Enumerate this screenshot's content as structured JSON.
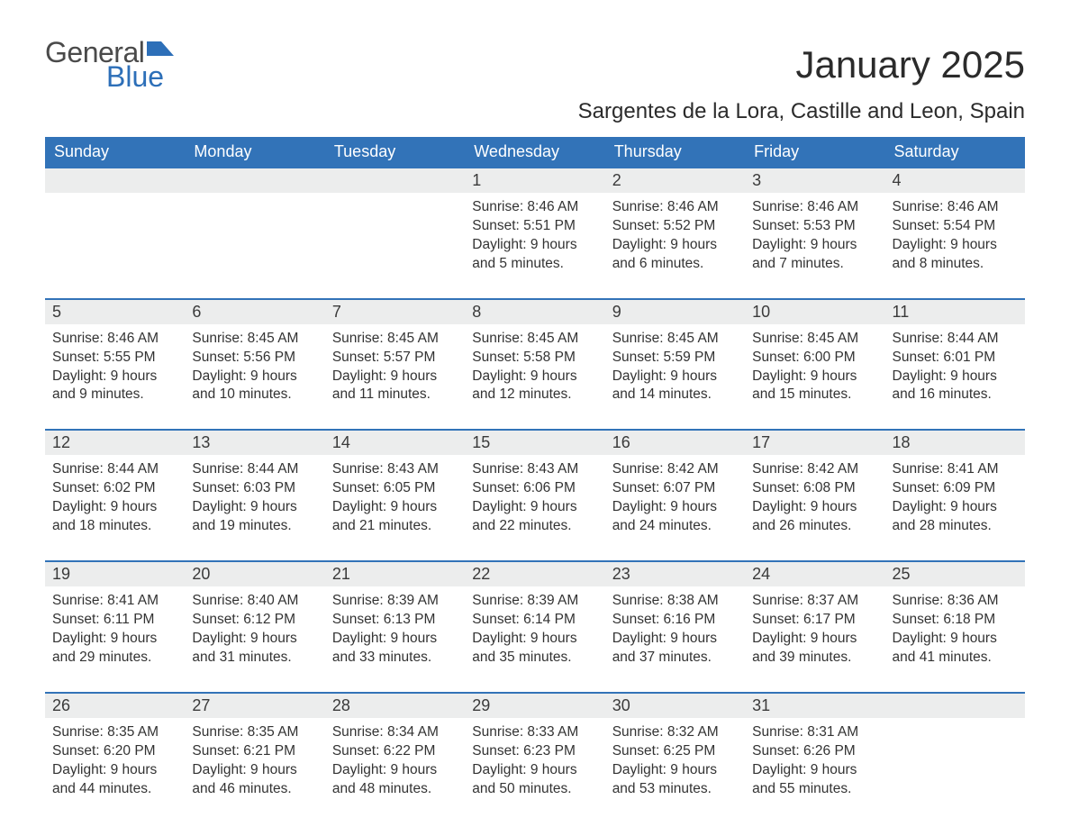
{
  "logo": {
    "word1": "General",
    "word2": "Blue"
  },
  "title": "January 2025",
  "subtitle": "Sargentes de la Lora, Castille and Leon, Spain",
  "colors": {
    "header_bg": "#3273b8",
    "header_text": "#ffffff",
    "daynum_bg": "#eceded",
    "rule": "#3273b8",
    "body_text": "#333333",
    "logo_gray": "#4a4a4a",
    "logo_blue": "#2d6fb8",
    "page_bg": "#ffffff"
  },
  "typography": {
    "title_fontsize": 42,
    "subtitle_fontsize": 24,
    "dayhead_fontsize": 18,
    "daynum_fontsize": 18,
    "detail_fontsize": 15.5,
    "logo_fontsize": 32,
    "font_family": "Arial"
  },
  "weekday_labels": [
    "Sunday",
    "Monday",
    "Tuesday",
    "Wednesday",
    "Thursday",
    "Friday",
    "Saturday"
  ],
  "weeks": [
    [
      null,
      null,
      null,
      {
        "n": "1",
        "sunrise": "Sunrise: 8:46 AM",
        "sunset": "Sunset: 5:51 PM",
        "d1": "Daylight: 9 hours",
        "d2": "and 5 minutes."
      },
      {
        "n": "2",
        "sunrise": "Sunrise: 8:46 AM",
        "sunset": "Sunset: 5:52 PM",
        "d1": "Daylight: 9 hours",
        "d2": "and 6 minutes."
      },
      {
        "n": "3",
        "sunrise": "Sunrise: 8:46 AM",
        "sunset": "Sunset: 5:53 PM",
        "d1": "Daylight: 9 hours",
        "d2": "and 7 minutes."
      },
      {
        "n": "4",
        "sunrise": "Sunrise: 8:46 AM",
        "sunset": "Sunset: 5:54 PM",
        "d1": "Daylight: 9 hours",
        "d2": "and 8 minutes."
      }
    ],
    [
      {
        "n": "5",
        "sunrise": "Sunrise: 8:46 AM",
        "sunset": "Sunset: 5:55 PM",
        "d1": "Daylight: 9 hours",
        "d2": "and 9 minutes."
      },
      {
        "n": "6",
        "sunrise": "Sunrise: 8:45 AM",
        "sunset": "Sunset: 5:56 PM",
        "d1": "Daylight: 9 hours",
        "d2": "and 10 minutes."
      },
      {
        "n": "7",
        "sunrise": "Sunrise: 8:45 AM",
        "sunset": "Sunset: 5:57 PM",
        "d1": "Daylight: 9 hours",
        "d2": "and 11 minutes."
      },
      {
        "n": "8",
        "sunrise": "Sunrise: 8:45 AM",
        "sunset": "Sunset: 5:58 PM",
        "d1": "Daylight: 9 hours",
        "d2": "and 12 minutes."
      },
      {
        "n": "9",
        "sunrise": "Sunrise: 8:45 AM",
        "sunset": "Sunset: 5:59 PM",
        "d1": "Daylight: 9 hours",
        "d2": "and 14 minutes."
      },
      {
        "n": "10",
        "sunrise": "Sunrise: 8:45 AM",
        "sunset": "Sunset: 6:00 PM",
        "d1": "Daylight: 9 hours",
        "d2": "and 15 minutes."
      },
      {
        "n": "11",
        "sunrise": "Sunrise: 8:44 AM",
        "sunset": "Sunset: 6:01 PM",
        "d1": "Daylight: 9 hours",
        "d2": "and 16 minutes."
      }
    ],
    [
      {
        "n": "12",
        "sunrise": "Sunrise: 8:44 AM",
        "sunset": "Sunset: 6:02 PM",
        "d1": "Daylight: 9 hours",
        "d2": "and 18 minutes."
      },
      {
        "n": "13",
        "sunrise": "Sunrise: 8:44 AM",
        "sunset": "Sunset: 6:03 PM",
        "d1": "Daylight: 9 hours",
        "d2": "and 19 minutes."
      },
      {
        "n": "14",
        "sunrise": "Sunrise: 8:43 AM",
        "sunset": "Sunset: 6:05 PM",
        "d1": "Daylight: 9 hours",
        "d2": "and 21 minutes."
      },
      {
        "n": "15",
        "sunrise": "Sunrise: 8:43 AM",
        "sunset": "Sunset: 6:06 PM",
        "d1": "Daylight: 9 hours",
        "d2": "and 22 minutes."
      },
      {
        "n": "16",
        "sunrise": "Sunrise: 8:42 AM",
        "sunset": "Sunset: 6:07 PM",
        "d1": "Daylight: 9 hours",
        "d2": "and 24 minutes."
      },
      {
        "n": "17",
        "sunrise": "Sunrise: 8:42 AM",
        "sunset": "Sunset: 6:08 PM",
        "d1": "Daylight: 9 hours",
        "d2": "and 26 minutes."
      },
      {
        "n": "18",
        "sunrise": "Sunrise: 8:41 AM",
        "sunset": "Sunset: 6:09 PM",
        "d1": "Daylight: 9 hours",
        "d2": "and 28 minutes."
      }
    ],
    [
      {
        "n": "19",
        "sunrise": "Sunrise: 8:41 AM",
        "sunset": "Sunset: 6:11 PM",
        "d1": "Daylight: 9 hours",
        "d2": "and 29 minutes."
      },
      {
        "n": "20",
        "sunrise": "Sunrise: 8:40 AM",
        "sunset": "Sunset: 6:12 PM",
        "d1": "Daylight: 9 hours",
        "d2": "and 31 minutes."
      },
      {
        "n": "21",
        "sunrise": "Sunrise: 8:39 AM",
        "sunset": "Sunset: 6:13 PM",
        "d1": "Daylight: 9 hours",
        "d2": "and 33 minutes."
      },
      {
        "n": "22",
        "sunrise": "Sunrise: 8:39 AM",
        "sunset": "Sunset: 6:14 PM",
        "d1": "Daylight: 9 hours",
        "d2": "and 35 minutes."
      },
      {
        "n": "23",
        "sunrise": "Sunrise: 8:38 AM",
        "sunset": "Sunset: 6:16 PM",
        "d1": "Daylight: 9 hours",
        "d2": "and 37 minutes."
      },
      {
        "n": "24",
        "sunrise": "Sunrise: 8:37 AM",
        "sunset": "Sunset: 6:17 PM",
        "d1": "Daylight: 9 hours",
        "d2": "and 39 minutes."
      },
      {
        "n": "25",
        "sunrise": "Sunrise: 8:36 AM",
        "sunset": "Sunset: 6:18 PM",
        "d1": "Daylight: 9 hours",
        "d2": "and 41 minutes."
      }
    ],
    [
      {
        "n": "26",
        "sunrise": "Sunrise: 8:35 AM",
        "sunset": "Sunset: 6:20 PM",
        "d1": "Daylight: 9 hours",
        "d2": "and 44 minutes."
      },
      {
        "n": "27",
        "sunrise": "Sunrise: 8:35 AM",
        "sunset": "Sunset: 6:21 PM",
        "d1": "Daylight: 9 hours",
        "d2": "and 46 minutes."
      },
      {
        "n": "28",
        "sunrise": "Sunrise: 8:34 AM",
        "sunset": "Sunset: 6:22 PM",
        "d1": "Daylight: 9 hours",
        "d2": "and 48 minutes."
      },
      {
        "n": "29",
        "sunrise": "Sunrise: 8:33 AM",
        "sunset": "Sunset: 6:23 PM",
        "d1": "Daylight: 9 hours",
        "d2": "and 50 minutes."
      },
      {
        "n": "30",
        "sunrise": "Sunrise: 8:32 AM",
        "sunset": "Sunset: 6:25 PM",
        "d1": "Daylight: 9 hours",
        "d2": "and 53 minutes."
      },
      {
        "n": "31",
        "sunrise": "Sunrise: 8:31 AM",
        "sunset": "Sunset: 6:26 PM",
        "d1": "Daylight: 9 hours",
        "d2": "and 55 minutes."
      },
      null
    ]
  ]
}
